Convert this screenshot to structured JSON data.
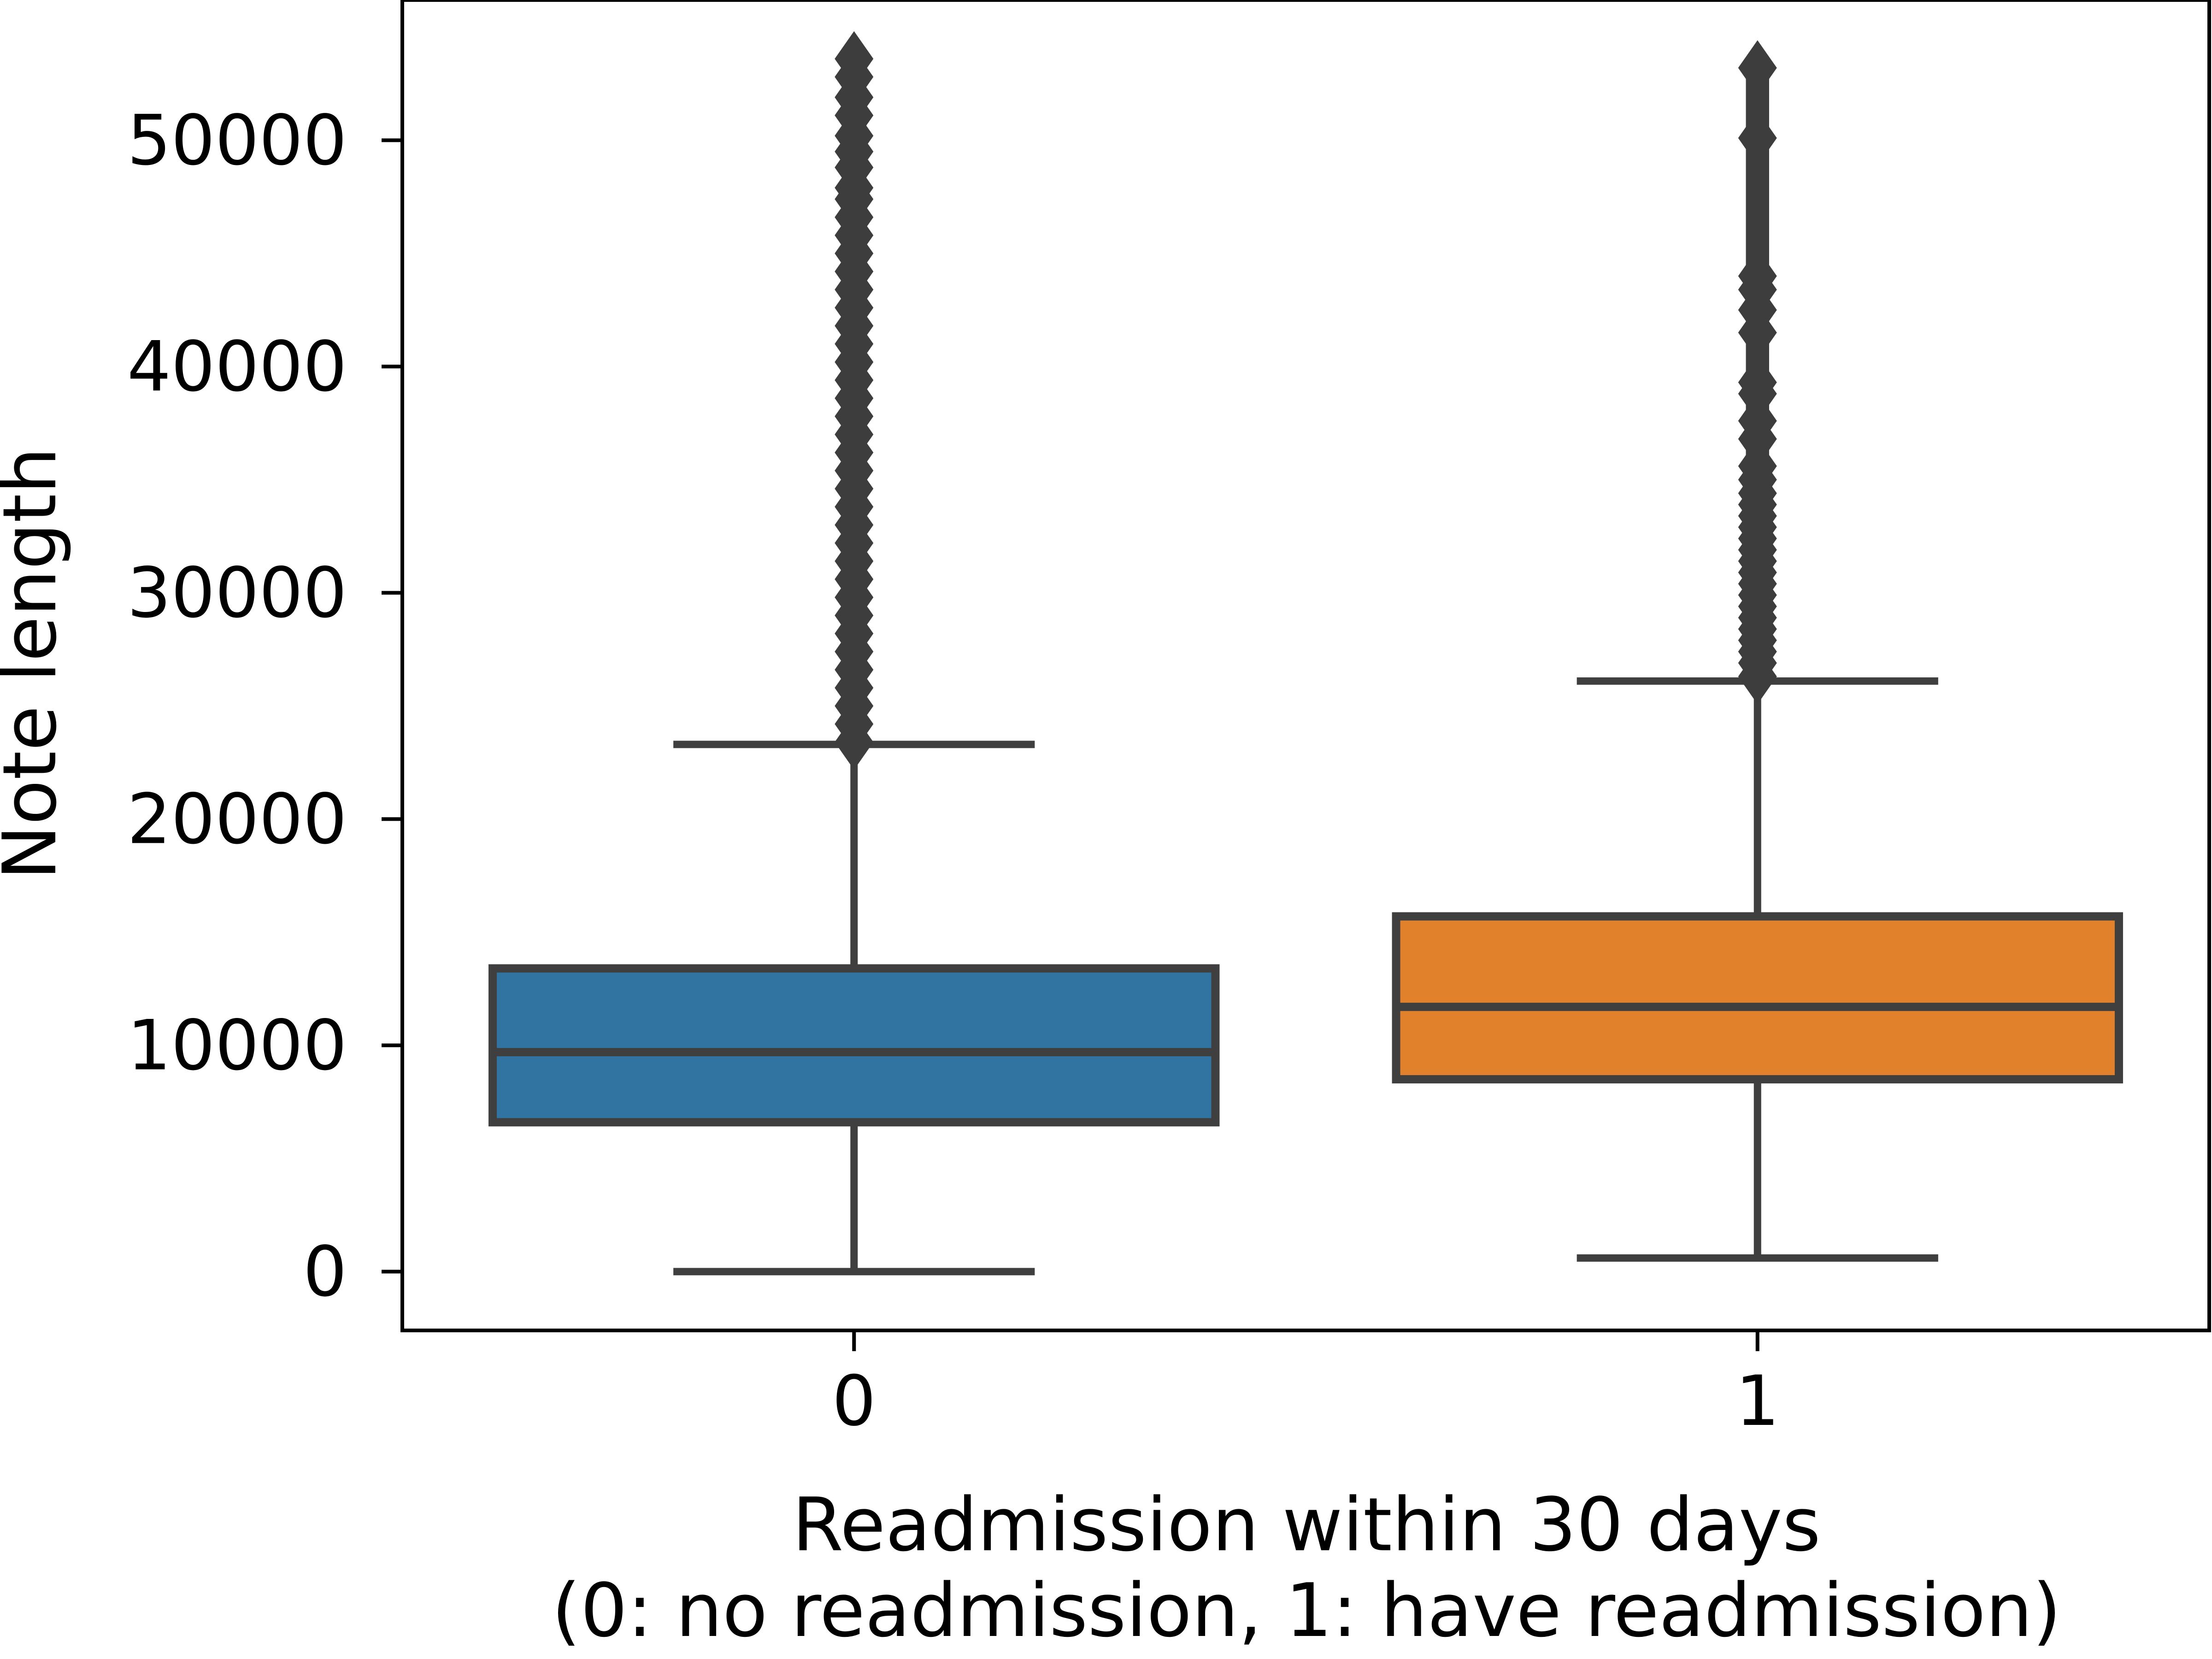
{
  "chart_data": {
    "type": "box",
    "xlabel": "Readmission within 30 days",
    "xlabel_line2": "(0: no readmission, 1: have readmission)",
    "ylabel": "Note length",
    "categories": [
      "0",
      "1"
    ],
    "ylim": [
      -2600,
      56200
    ],
    "yticks": [
      0,
      10000,
      20000,
      30000,
      40000,
      50000
    ],
    "ytick_labels": [
      "0",
      "10000",
      "20000",
      "30000",
      "40000",
      "50000"
    ],
    "grid": false,
    "boxes": [
      {
        "category": "0",
        "color": "#3274a1",
        "q1": 6600,
        "median": 9700,
        "q3": 13400,
        "whisker_low": 0,
        "whisker_high": 23300,
        "outlier_range": [
          23400,
          53800
        ],
        "outliers": [
          23400,
          24200,
          25000,
          25800,
          26600,
          27400,
          28200,
          29000,
          29800,
          30600,
          31400,
          32200,
          33000,
          33800,
          34600,
          35400,
          36200,
          37000,
          37800,
          38600,
          39400,
          40200,
          41000,
          41800,
          42600,
          43400,
          44200,
          45000,
          45800,
          46600,
          47400,
          47900,
          48800,
          49500,
          50200,
          51100,
          51900,
          52800,
          53600
        ]
      },
      {
        "category": "1",
        "color": "#e1812c",
        "q1": 8500,
        "median": 11700,
        "q3": 15700,
        "whisker_low": 600,
        "whisker_high": 26100,
        "outlier_range": [
          26300,
          53400
        ],
        "outliers": [
          26300,
          26900,
          27400,
          27900,
          28400,
          28900,
          29400,
          29900,
          30400,
          30900,
          31400,
          31900,
          32400,
          32900,
          33400,
          33900,
          34400,
          35000,
          35600,
          36800,
          37600,
          38800,
          39300,
          41500,
          42500,
          43400,
          44000,
          50100,
          53200
        ]
      }
    ],
    "colors": {
      "box_edge": "#3f3f3f",
      "outlier": "#3d3d3d",
      "axes": "#000000"
    }
  }
}
